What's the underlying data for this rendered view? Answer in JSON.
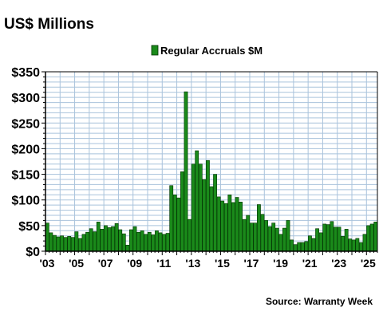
{
  "chart_data": {
    "type": "bar",
    "title": "US$ Millions",
    "legend": {
      "label": "Regular Accruals $M",
      "placement": "top-center"
    },
    "source": "Source: Warranty Week",
    "xlabel": "",
    "ylabel": "",
    "ylim": [
      0,
      350
    ],
    "yticks": [
      0,
      50,
      100,
      150,
      200,
      250,
      300,
      350
    ],
    "ytick_labels": [
      "$0",
      "$50",
      "$100",
      "$150",
      "$200",
      "$250",
      "$300",
      "$350"
    ],
    "xtick_labels": [
      "'03",
      "'05",
      "'07",
      "'09",
      "'11",
      "'13",
      "'15",
      "'17",
      "'19",
      "'21",
      "'23",
      "'25"
    ],
    "xtick_quarter_index": [
      0,
      8,
      16,
      24,
      32,
      40,
      48,
      56,
      64,
      72,
      80,
      88
    ],
    "grid": true,
    "categories": [
      "Q1 2003",
      "Q2 2003",
      "Q3 2003",
      "Q4 2003",
      "Q1 2004",
      "Q2 2004",
      "Q3 2004",
      "Q4 2004",
      "Q1 2005",
      "Q2 2005",
      "Q3 2005",
      "Q4 2005",
      "Q1 2006",
      "Q2 2006",
      "Q3 2006",
      "Q4 2006",
      "Q1 2007",
      "Q2 2007",
      "Q3 2007",
      "Q4 2007",
      "Q1 2008",
      "Q2 2008",
      "Q3 2008",
      "Q4 2008",
      "Q1 2009",
      "Q2 2009",
      "Q3 2009",
      "Q4 2009",
      "Q1 2010",
      "Q2 2010",
      "Q3 2010",
      "Q4 2010",
      "Q1 2011",
      "Q2 2011",
      "Q3 2011",
      "Q4 2011",
      "Q1 2012",
      "Q2 2012",
      "Q3 2012",
      "Q4 2012",
      "Q1 2013",
      "Q2 2013",
      "Q3 2013",
      "Q4 2013",
      "Q1 2014",
      "Q2 2014",
      "Q3 2014",
      "Q4 2014",
      "Q1 2015",
      "Q2 2015",
      "Q3 2015",
      "Q4 2015",
      "Q1 2016",
      "Q2 2016",
      "Q3 2016",
      "Q4 2016",
      "Q1 2017",
      "Q2 2017",
      "Q3 2017",
      "Q4 2017",
      "Q1 2018",
      "Q2 2018",
      "Q3 2018",
      "Q4 2018",
      "Q1 2019",
      "Q2 2019",
      "Q3 2019",
      "Q4 2019",
      "Q1 2020",
      "Q2 2020",
      "Q3 2020",
      "Q4 2020",
      "Q1 2021",
      "Q2 2021",
      "Q3 2021",
      "Q4 2021",
      "Q1 2022",
      "Q2 2022",
      "Q3 2022",
      "Q4 2022",
      "Q1 2023",
      "Q2 2023",
      "Q3 2023",
      "Q4 2023",
      "Q1 2024",
      "Q2 2024",
      "Q3 2024",
      "Q4 2024",
      "Q1 2025",
      "Q2 2025",
      "Q3 2025"
    ],
    "series": [
      {
        "name": "Regular Accruals $M",
        "color": "#1a8a1a",
        "values": [
          55,
          36,
          31,
          28,
          30,
          27,
          29,
          27,
          38,
          25,
          33,
          37,
          44,
          38,
          57,
          43,
          50,
          46,
          48,
          54,
          42,
          34,
          12,
          42,
          48,
          37,
          40,
          33,
          37,
          32,
          40,
          36,
          33,
          35,
          128,
          110,
          104,
          155,
          311,
          62,
          170,
          196,
          170,
          140,
          177,
          126,
          150,
          106,
          98,
          93,
          110,
          95,
          105,
          96,
          62,
          70,
          55,
          55,
          91,
          72,
          60,
          48,
          55,
          45,
          33,
          45,
          60,
          22,
          13,
          17,
          17,
          19,
          30,
          25,
          44,
          36,
          53,
          52,
          58,
          47,
          47,
          29,
          43,
          24,
          22,
          25,
          17,
          33,
          50,
          53,
          57
        ]
      }
    ],
    "colors": {
      "bar_fill": "#1a8a1a",
      "bar_stroke": "#003300",
      "grid": "#a9c3dc",
      "axis": "#000000"
    }
  }
}
